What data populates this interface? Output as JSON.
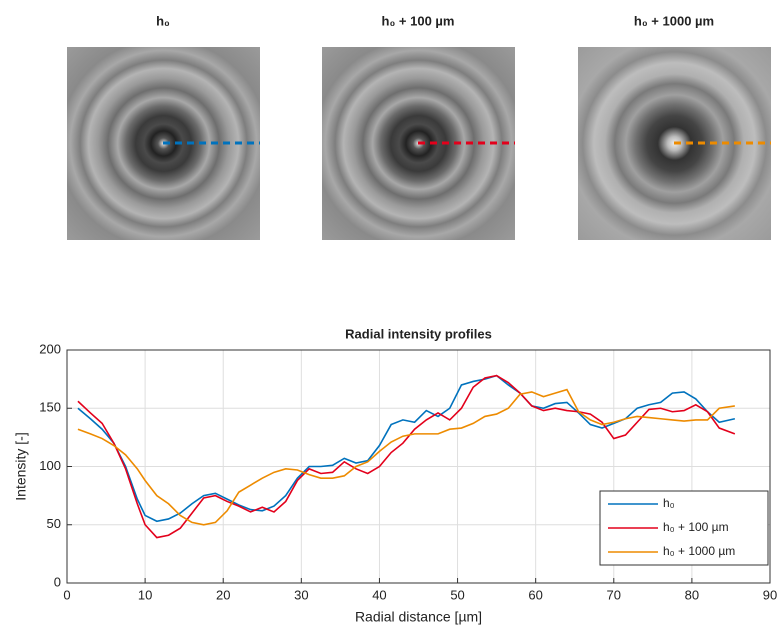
{
  "panels": [
    {
      "title": "h₀"
    },
    {
      "title": "h₀ + 100 µm"
    },
    {
      "title": "h₀ + 1000 µm"
    }
  ],
  "chart_data": {
    "type": "line",
    "title": "Radial intensity profiles",
    "x_label": "Radial distance [µm]",
    "y_label": "Intensity [-]",
    "x": [
      1.4,
      3,
      4.5,
      6,
      7.5,
      9,
      10,
      11.5,
      13,
      14.5,
      16,
      17.5,
      19,
      20.5,
      22,
      23.5,
      25,
      26.5,
      28,
      29.5,
      31,
      32.5,
      34,
      35.5,
      37,
      38.5,
      40,
      41.5,
      43,
      44.5,
      46,
      47.5,
      49,
      50.5,
      52,
      53.5,
      55,
      56.5,
      58,
      59.5,
      61,
      62.5,
      64,
      65.5,
      67,
      68.5,
      70,
      71.5,
      73,
      74.5,
      76,
      77.5,
      79,
      80.5,
      82,
      83.5,
      85.5
    ],
    "series": [
      {
        "name": "h₀",
        "color": "#0072bd",
        "values": [
          150,
          141,
          132,
          120,
          100,
          72,
          58,
          53,
          55,
          60,
          68,
          75,
          77,
          72,
          67,
          63,
          62,
          66,
          75,
          90,
          100,
          100,
          101,
          107,
          103,
          105,
          118,
          136,
          140,
          138,
          148,
          143,
          150,
          170,
          173,
          175,
          178,
          170,
          163,
          152,
          150,
          154,
          155,
          146,
          136,
          133,
          137,
          141,
          150,
          153,
          155,
          163,
          164,
          158,
          147,
          138,
          141
        ]
      },
      {
        "name": "h₀ + 100 µm",
        "color": "#e3001b",
        "values": [
          156,
          146,
          137,
          120,
          98,
          68,
          50,
          39,
          41,
          47,
          60,
          73,
          75,
          70,
          66,
          61,
          65,
          61,
          70,
          88,
          98,
          94,
          95,
          104,
          98,
          94,
          100,
          112,
          120,
          132,
          140,
          146,
          140,
          150,
          168,
          176,
          178,
          172,
          163,
          152,
          148,
          150,
          148,
          147,
          145,
          138,
          124,
          127,
          138,
          149,
          150,
          147,
          148,
          153,
          147,
          133,
          128
        ]
      },
      {
        "name": "h₀ + 1000 µm",
        "color": "#ed8b00",
        "values": [
          132,
          128,
          124,
          118,
          110,
          98,
          88,
          75,
          68,
          58,
          52,
          50,
          52,
          62,
          78,
          84,
          90,
          95,
          98,
          97,
          93,
          90,
          90,
          92,
          100,
          104,
          113,
          121,
          126,
          128,
          128,
          128,
          132,
          133,
          137,
          143,
          145,
          150,
          162,
          164,
          160,
          163,
          166,
          147,
          140,
          136,
          138,
          141,
          143,
          142,
          141,
          140,
          139,
          140,
          140,
          150,
          152
        ]
      }
    ],
    "xlim": [
      0,
      90
    ],
    "xticks": [
      0,
      10,
      20,
      30,
      40,
      50,
      60,
      70,
      80,
      90
    ],
    "ylim": [
      0,
      200
    ],
    "yticks": [
      0,
      50,
      100,
      150,
      200
    ],
    "grid": true,
    "legend": "lower right"
  }
}
